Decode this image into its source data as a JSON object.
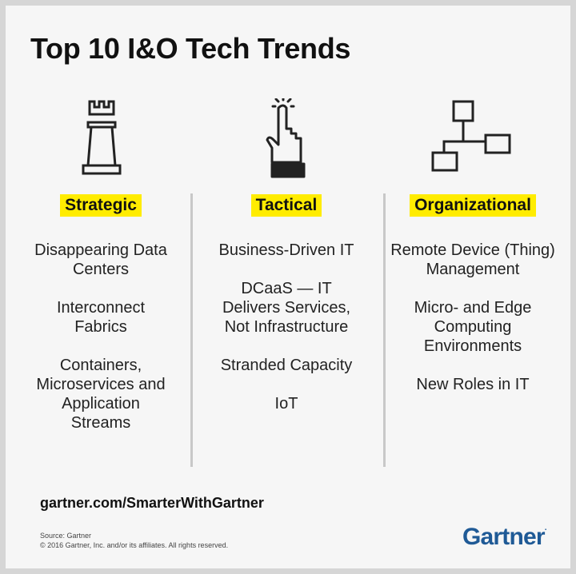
{
  "title": "Top 10 I&O Tech Trends",
  "columns": [
    {
      "label": "Strategic",
      "icon": "chess-rook-icon",
      "items": [
        "Disappearing Data Centers",
        "Interconnect Fabrics",
        "Containers, Microservices and Application Streams"
      ]
    },
    {
      "label": "Tactical",
      "icon": "pointing-hand-icon",
      "items": [
        "Business-Driven IT",
        "DCaaS — IT Delivers Services, Not Infrastructure",
        "Stranded Capacity",
        "IoT"
      ]
    },
    {
      "label": "Organizational",
      "icon": "org-chart-icon",
      "items": [
        "Remote Device (Thing) Management",
        "Micro- and Edge Computing Environments",
        "New Roles in IT"
      ]
    }
  ],
  "footer": {
    "url": "gartner.com/SmarterWithGartner",
    "source": "Source: Gartner",
    "copyright": "© 2016 Gartner, Inc. and/or its affiliates. All rights reserved."
  },
  "logo": "Gartner",
  "colors": {
    "highlight": "#ffec00",
    "brand": "#1f5a96",
    "background": "#f6f6f6"
  }
}
